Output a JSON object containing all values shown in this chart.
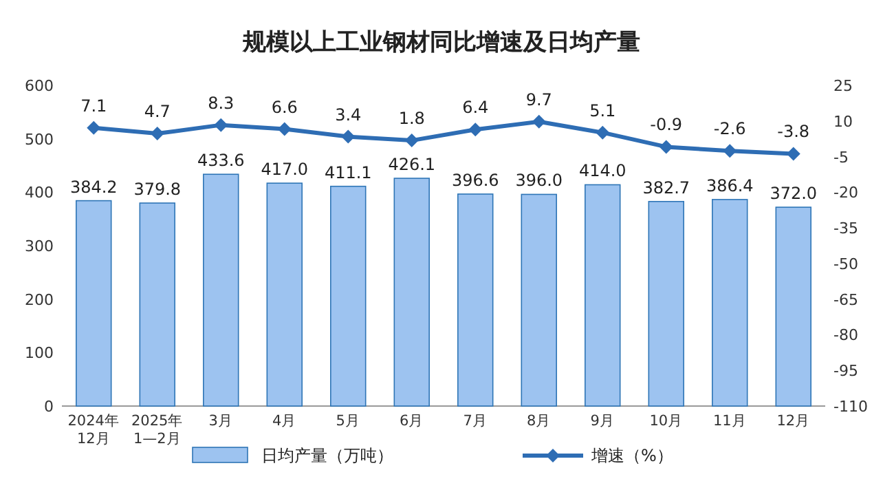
{
  "chart_data": {
    "type": "bar",
    "title": "规模以上工业钢材同比增速及日均产量",
    "categories": [
      "2024年\n12月",
      "2025年\n1—2月",
      "3月",
      "4月",
      "5月",
      "6月",
      "7月",
      "8月",
      "9月",
      "10月",
      "11月",
      "12月"
    ],
    "series": [
      {
        "name": "日均产量（万吨）",
        "color": "#9dc3f0",
        "values": [
          384.2,
          379.8,
          433.6,
          417.0,
          411.1,
          426.1,
          396.6,
          396.0,
          414.0,
          382.7,
          386.4,
          372.0
        ],
        "value_labels": [
          "384.2",
          "379.8",
          "433.6",
          "417.0",
          "411.1",
          "426.1",
          "396.6",
          "396.0",
          "414.0",
          "382.7",
          "386.4",
          "372.0"
        ]
      },
      {
        "name": "增速（%）",
        "type": "line",
        "axis": "y2",
        "color": "#2e6db4",
        "marker": "diamond",
        "values": [
          7.1,
          4.7,
          8.3,
          6.6,
          3.4,
          1.8,
          6.4,
          9.7,
          5.1,
          -0.9,
          -2.6,
          -3.8
        ],
        "value_labels": [
          "7.1",
          "4.7",
          "8.3",
          "6.6",
          "3.4",
          "1.8",
          "6.4",
          "9.7",
          "5.1",
          "-0.9",
          "-2.6",
          "-3.8"
        ]
      }
    ],
    "ylim": [
      0,
      600
    ],
    "yticks": [
      0,
      100,
      200,
      300,
      400,
      500,
      600
    ],
    "y2lim": [
      -110,
      25
    ],
    "y2ticks": [
      -110,
      -95,
      -80,
      -65,
      -50,
      -35,
      -20,
      -5,
      10,
      25
    ],
    "legend": "bottom"
  }
}
